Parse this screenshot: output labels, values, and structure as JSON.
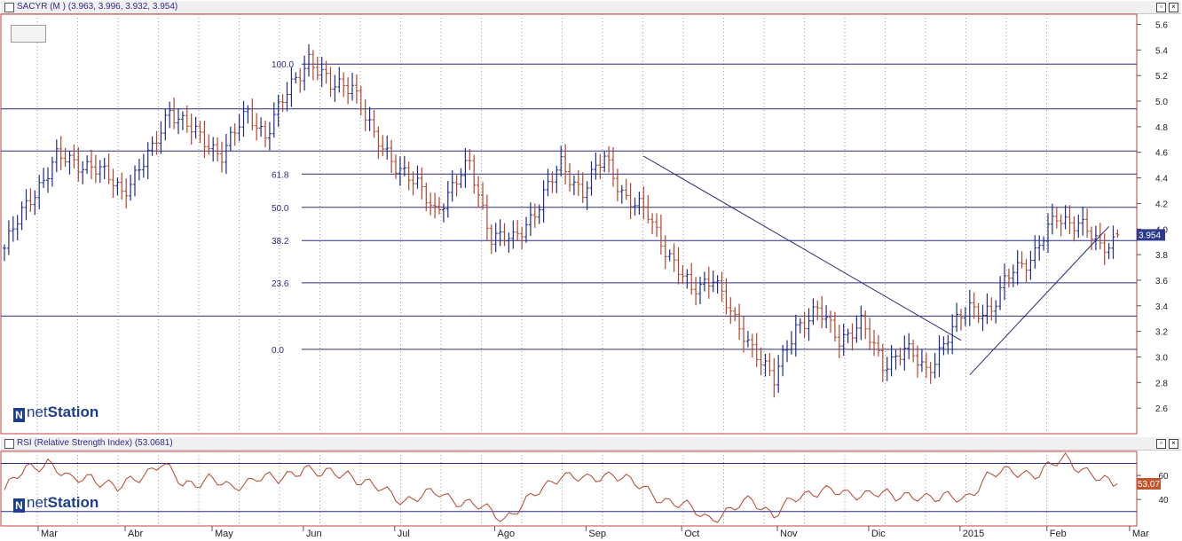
{
  "main_panel": {
    "title": "SACYR (M ) (3.963, 3.996, 3.932, 3.954)",
    "current_price_label": "3.954",
    "logo_prefix": "net",
    "logo_name": "Station"
  },
  "rsi_panel": {
    "title": "RSI (Relative Strength Index) (53.0681)",
    "current_value_label": "53.07",
    "logo_prefix": "net",
    "logo_name": "Station"
  },
  "window_buttons": {
    "restore": "▫",
    "close": "×"
  },
  "colors": {
    "up": "#1f2a8c",
    "down": "#b5442a",
    "rsi": "#b5442a",
    "line": "#2b2b7a",
    "grid": "#9a9a9a",
    "frame": "#c04040"
  },
  "chart_data": [
    {
      "type": "ohlc",
      "title": "SACYR (M ) (3.963, 3.996, 3.932, 3.954)",
      "x_axis_labels": [
        "Mar",
        "Abr",
        "May",
        "Jun",
        "Jul",
        "Ago",
        "Sep",
        "Oct",
        "Nov",
        "Dic",
        "2015",
        "Feb",
        "Mar"
      ],
      "y_ticks": [
        2.6,
        2.8,
        3.0,
        3.2,
        3.4,
        3.6,
        3.8,
        4.0,
        4.2,
        4.4,
        4.6,
        4.8,
        5.0,
        5.2,
        5.4,
        5.6
      ],
      "ylim": [
        2.4,
        5.68
      ],
      "last": {
        "open": 3.963,
        "high": 3.996,
        "low": 3.932,
        "close": 3.954
      },
      "fibonacci_levels": [
        {
          "label": "100.0",
          "value": 5.29
        },
        {
          "label": "61.8",
          "value": 4.43
        },
        {
          "label": "50.0",
          "value": 4.17
        },
        {
          "label": "38.2",
          "value": 3.91
        },
        {
          "label": "23.6",
          "value": 3.58
        },
        {
          "label": "0.0",
          "value": 3.06
        }
      ],
      "horizontal_lines": [
        4.94,
        4.61,
        3.32
      ],
      "price_path": [
        [
          0,
          3.85
        ],
        [
          6,
          4.25
        ],
        [
          12,
          4.55
        ],
        [
          20,
          4.5
        ],
        [
          27,
          4.3
        ],
        [
          34,
          4.6
        ],
        [
          38,
          4.95
        ],
        [
          45,
          4.7
        ],
        [
          50,
          4.6
        ],
        [
          56,
          4.9
        ],
        [
          60,
          4.75
        ],
        [
          65,
          5.05
        ],
        [
          70,
          5.35
        ],
        [
          75,
          5.1
        ],
        [
          80,
          5.15
        ],
        [
          85,
          4.7
        ],
        [
          92,
          4.45
        ],
        [
          99,
          4.15
        ],
        [
          107,
          4.5
        ],
        [
          112,
          3.95
        ],
        [
          117,
          3.9
        ],
        [
          123,
          4.2
        ],
        [
          128,
          4.5
        ],
        [
          133,
          4.3
        ],
        [
          138,
          4.55
        ],
        [
          143,
          4.25
        ],
        [
          148,
          4.1
        ],
        [
          153,
          3.8
        ],
        [
          158,
          3.5
        ],
        [
          163,
          3.65
        ],
        [
          168,
          3.25
        ],
        [
          173,
          3.05
        ],
        [
          177,
          2.8
        ],
        [
          182,
          3.25
        ],
        [
          187,
          3.35
        ],
        [
          192,
          3.15
        ],
        [
          197,
          3.25
        ],
        [
          202,
          2.95
        ],
        [
          207,
          3.05
        ],
        [
          212,
          2.9
        ],
        [
          217,
          3.15
        ],
        [
          222,
          3.4
        ],
        [
          227,
          3.35
        ],
        [
          232,
          3.7
        ],
        [
          237,
          3.8
        ],
        [
          242,
          4.1
        ],
        [
          247,
          4.05
        ],
        [
          252,
          3.85
        ],
        [
          256,
          3.95
        ]
      ],
      "trendlines": [
        {
          "from": [
            147,
            4.57
          ],
          "to": [
            220,
            3.13
          ]
        },
        {
          "from": [
            222,
            2.86
          ],
          "to": [
            254,
            4.02
          ]
        }
      ]
    },
    {
      "type": "line",
      "title": "RSI (Relative Strength Index) (53.0681)",
      "y_ticks": [
        40,
        60
      ],
      "ylim": [
        18,
        80
      ],
      "overbought": 70,
      "oversold": 30,
      "last": 53.0681,
      "rsi_path": [
        [
          0,
          48
        ],
        [
          5,
          65
        ],
        [
          10,
          72
        ],
        [
          15,
          55
        ],
        [
          20,
          60
        ],
        [
          26,
          48
        ],
        [
          32,
          62
        ],
        [
          36,
          70
        ],
        [
          41,
          52
        ],
        [
          47,
          58
        ],
        [
          52,
          48
        ],
        [
          58,
          60
        ],
        [
          63,
          55
        ],
        [
          69,
          68
        ],
        [
          73,
          60
        ],
        [
          79,
          62
        ],
        [
          85,
          50
        ],
        [
          92,
          40
        ],
        [
          100,
          45
        ],
        [
          108,
          35
        ],
        [
          115,
          25
        ],
        [
          121,
          40
        ],
        [
          128,
          62
        ],
        [
          134,
          55
        ],
        [
          140,
          63
        ],
        [
          146,
          50
        ],
        [
          152,
          40
        ],
        [
          157,
          33
        ],
        [
          162,
          25
        ],
        [
          167,
          30
        ],
        [
          172,
          40
        ],
        [
          177,
          28
        ],
        [
          183,
          42
        ],
        [
          188,
          50
        ],
        [
          194,
          42
        ],
        [
          200,
          48
        ],
        [
          205,
          40
        ],
        [
          210,
          45
        ],
        [
          215,
          40
        ],
        [
          221,
          42
        ],
        [
          226,
          58
        ],
        [
          232,
          65
        ],
        [
          238,
          60
        ],
        [
          244,
          76
        ],
        [
          248,
          65
        ],
        [
          252,
          55
        ],
        [
          256,
          53
        ]
      ]
    }
  ]
}
